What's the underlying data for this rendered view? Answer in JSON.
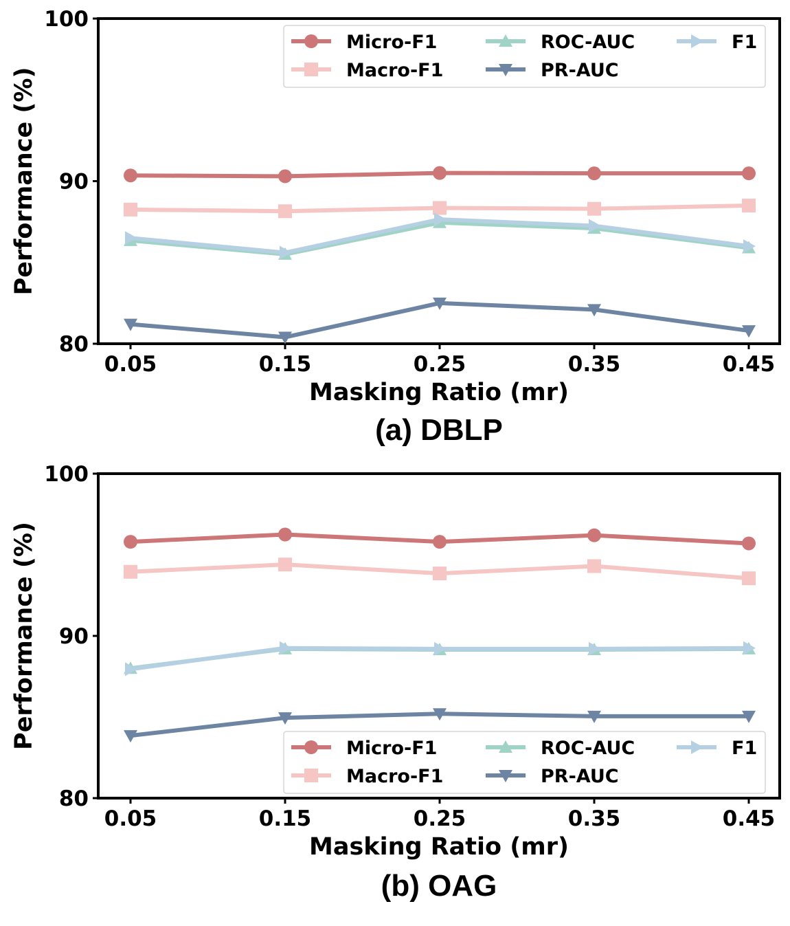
{
  "chart_data": [
    {
      "type": "line",
      "title": "(a) DBLP",
      "xlabel": "Masking Ratio (mr)",
      "ylabel": "Performance (%)",
      "categories": [
        "0.05",
        "0.15",
        "0.25",
        "0.35",
        "0.45"
      ],
      "ylim": [
        80,
        100
      ],
      "yticks": [
        "80",
        "90",
        "100"
      ],
      "legend_position": "top-right",
      "series": [
        {
          "name": "Micro-F1",
          "marker": "circle",
          "color": "#cd7677",
          "values": [
            90.35,
            90.3,
            90.5,
            90.48,
            90.48
          ]
        },
        {
          "name": "Macro-F1",
          "marker": "square",
          "color": "#f6c6c5",
          "values": [
            88.25,
            88.15,
            88.35,
            88.3,
            88.5
          ]
        },
        {
          "name": "ROC-AUC",
          "marker": "triangle-up",
          "color": "#9fd3c5",
          "values": [
            86.35,
            85.5,
            87.45,
            87.1,
            85.9
          ]
        },
        {
          "name": "PR-AUC",
          "marker": "triangle-down",
          "color": "#6d85a2",
          "values": [
            81.2,
            80.4,
            82.5,
            82.1,
            80.8
          ]
        },
        {
          "name": "F1",
          "marker": "triangle-right",
          "color": "#b6d0e3",
          "values": [
            86.5,
            85.6,
            87.65,
            87.25,
            86.0
          ]
        }
      ]
    },
    {
      "type": "line",
      "title": "(b) OAG",
      "xlabel": "Masking Ratio (mr)",
      "ylabel": "Performance (%)",
      "categories": [
        "0.05",
        "0.15",
        "0.25",
        "0.35",
        "0.45"
      ],
      "ylim": [
        80,
        100
      ],
      "yticks": [
        "80",
        "90",
        "100"
      ],
      "legend_position": "bottom-right",
      "series": [
        {
          "name": "Micro-F1",
          "marker": "circle",
          "color": "#cd7677",
          "values": [
            95.8,
            96.25,
            95.8,
            96.2,
            95.7
          ]
        },
        {
          "name": "Macro-F1",
          "marker": "square",
          "color": "#f6c6c5",
          "values": [
            93.95,
            94.4,
            93.85,
            94.3,
            93.55
          ]
        },
        {
          "name": "ROC-AUC",
          "marker": "triangle-up",
          "color": "#9fd3c5",
          "values": [
            88.0,
            89.2,
            89.15,
            89.15,
            89.2
          ]
        },
        {
          "name": "PR-AUC",
          "marker": "triangle-down",
          "color": "#6d85a2",
          "values": [
            83.85,
            84.95,
            85.2,
            85.05,
            85.05
          ]
        },
        {
          "name": "F1",
          "marker": "triangle-right",
          "color": "#b6d0e3",
          "values": [
            87.95,
            89.25,
            89.2,
            89.2,
            89.25
          ]
        }
      ]
    }
  ]
}
